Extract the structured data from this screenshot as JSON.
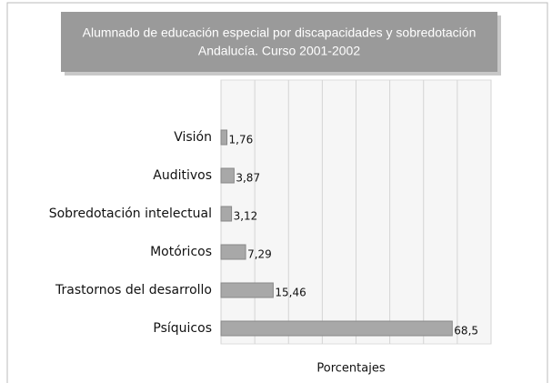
{
  "chart_data": {
    "type": "barh",
    "title": [
      "Alumnado de educación especial por discapacidades y sobredotación",
      "Andalucía. Curso 2001-2002"
    ],
    "x_label": "Porcentajes",
    "categories": [
      "Visión",
      "Auditivos",
      "Sobredotación intelectual",
      "Motóricos",
      "Trastornos del desarrollo",
      "Psíquicos"
    ],
    "values": [
      1.76,
      3.87,
      3.12,
      7.29,
      15.46,
      68.5
    ],
    "value_labels": [
      "1,76",
      "3,87",
      "3,12",
      "7,29",
      "15,46",
      "68,5"
    ],
    "color": "#a8a8a8",
    "xlim": [
      0,
      80
    ],
    "xticks": [
      0,
      10,
      20,
      30,
      40,
      50,
      60,
      70,
      80
    ],
    "grid": true
  }
}
